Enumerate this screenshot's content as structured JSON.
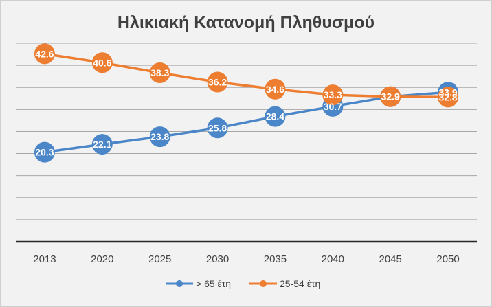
{
  "chart_data": {
    "type": "line",
    "title": "Ηλικιακή Κατανομή Πληθυσμού",
    "categories": [
      "2013",
      "2020",
      "2025",
      "2030",
      "2035",
      "2040",
      "2045",
      "2050"
    ],
    "series": [
      {
        "name": "> 65 έτη",
        "color": "#4a86c8",
        "values": [
          20.3,
          22.1,
          23.8,
          25.8,
          28.4,
          30.7,
          32.9,
          33.9
        ]
      },
      {
        "name": "25-54 έτη",
        "color": "#ed7d31",
        "values": [
          42.6,
          40.6,
          38.3,
          36.2,
          34.6,
          33.3,
          32.9,
          32.8
        ]
      }
    ],
    "ylim": [
      0,
      45
    ],
    "grid": true,
    "legend": "bottom"
  }
}
